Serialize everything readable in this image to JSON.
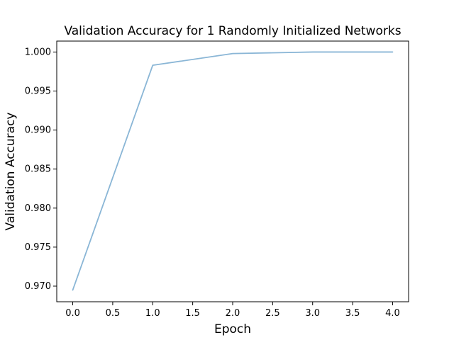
{
  "chart_data": {
    "type": "line",
    "title": "Validation Accuracy for 1 Randomly Initialized Networks",
    "xlabel": "Epoch",
    "ylabel": "Validation Accuracy",
    "x": [
      0,
      1,
      2,
      3,
      4
    ],
    "series": [
      {
        "values": [
          0.9695,
          0.9983,
          0.9998,
          1.0,
          1.0
        ],
        "color": "#8ab6d6"
      }
    ],
    "xlim": [
      -0.2,
      4.2
    ],
    "ylim": [
      0.968,
      1.0014
    ],
    "xticks": [
      0.0,
      0.5,
      1.0,
      1.5,
      2.0,
      2.5,
      3.0,
      3.5,
      4.0
    ],
    "xtick_labels": [
      "0.0",
      "0.5",
      "1.0",
      "1.5",
      "2.0",
      "2.5",
      "3.0",
      "3.5",
      "4.0"
    ],
    "yticks": [
      0.97,
      0.975,
      0.98,
      0.985,
      0.99,
      0.995,
      1.0
    ],
    "ytick_labels": [
      "0.970",
      "0.975",
      "0.980",
      "0.985",
      "0.990",
      "0.995",
      "1.000"
    ],
    "grid": false,
    "legend": false
  }
}
